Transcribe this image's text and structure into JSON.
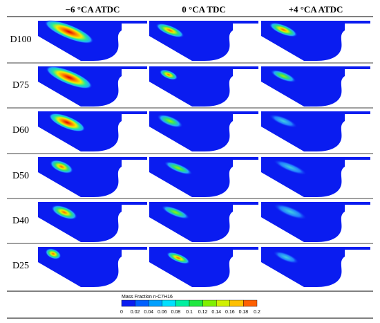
{
  "columns": [
    "−6 °CA ATDC",
    "0 °CA TDC",
    "+4 °CA ATDC"
  ],
  "rows": [
    "D100",
    "D75",
    "D60",
    "D50",
    "D40",
    "D25"
  ],
  "colorbar": {
    "title": "Mass Fraction n-C7H16",
    "ticks": [
      0,
      0.02,
      0.04,
      0.06,
      0.08,
      0.1,
      0.12,
      0.14,
      0.16,
      0.18,
      0.2
    ]
  }
}
